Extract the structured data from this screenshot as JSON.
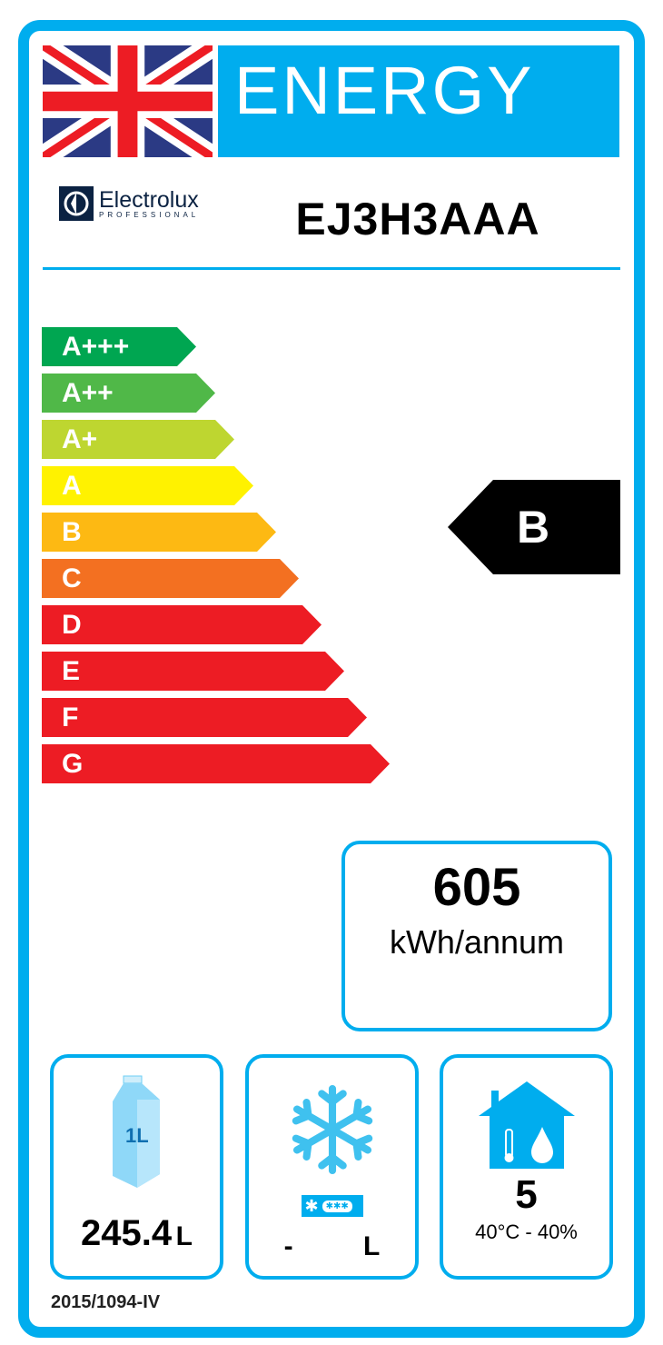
{
  "header": {
    "title": "ENERGY",
    "flag_icon": "uk-flag-icon",
    "brand": "Electrolux",
    "brand_sub": "PROFESSIONAL",
    "model": "EJ3H3AAA"
  },
  "scale": {
    "classes": [
      {
        "label": "A+++",
        "color": "#00a651"
      },
      {
        "label": "A++",
        "color": "#50b848"
      },
      {
        "label": "A+",
        "color": "#bed630"
      },
      {
        "label": "A",
        "color": "#fff200"
      },
      {
        "label": "B",
        "color": "#fdb913"
      },
      {
        "label": "C",
        "color": "#f37021"
      },
      {
        "label": "D",
        "color": "#ed1c24"
      },
      {
        "label": "E",
        "color": "#ed1c24"
      },
      {
        "label": "F",
        "color": "#ed1c24"
      },
      {
        "label": "G",
        "color": "#ed1c24"
      }
    ],
    "rating": "B"
  },
  "consumption": {
    "value": "605",
    "unit": "kWh/annum"
  },
  "storage": {
    "icon": "milk-carton-icon",
    "carton_label": "1L",
    "value": "245.4",
    "unit": "L"
  },
  "freezer": {
    "icon": "snowflake-icon",
    "value": "-",
    "unit": "L"
  },
  "climate": {
    "icon": "house-climate-icon",
    "class": "5",
    "conditions": "40°C - 40%"
  },
  "footer": {
    "regulation": "2015/1094-IV"
  },
  "colors": {
    "accent": "#00adee"
  }
}
